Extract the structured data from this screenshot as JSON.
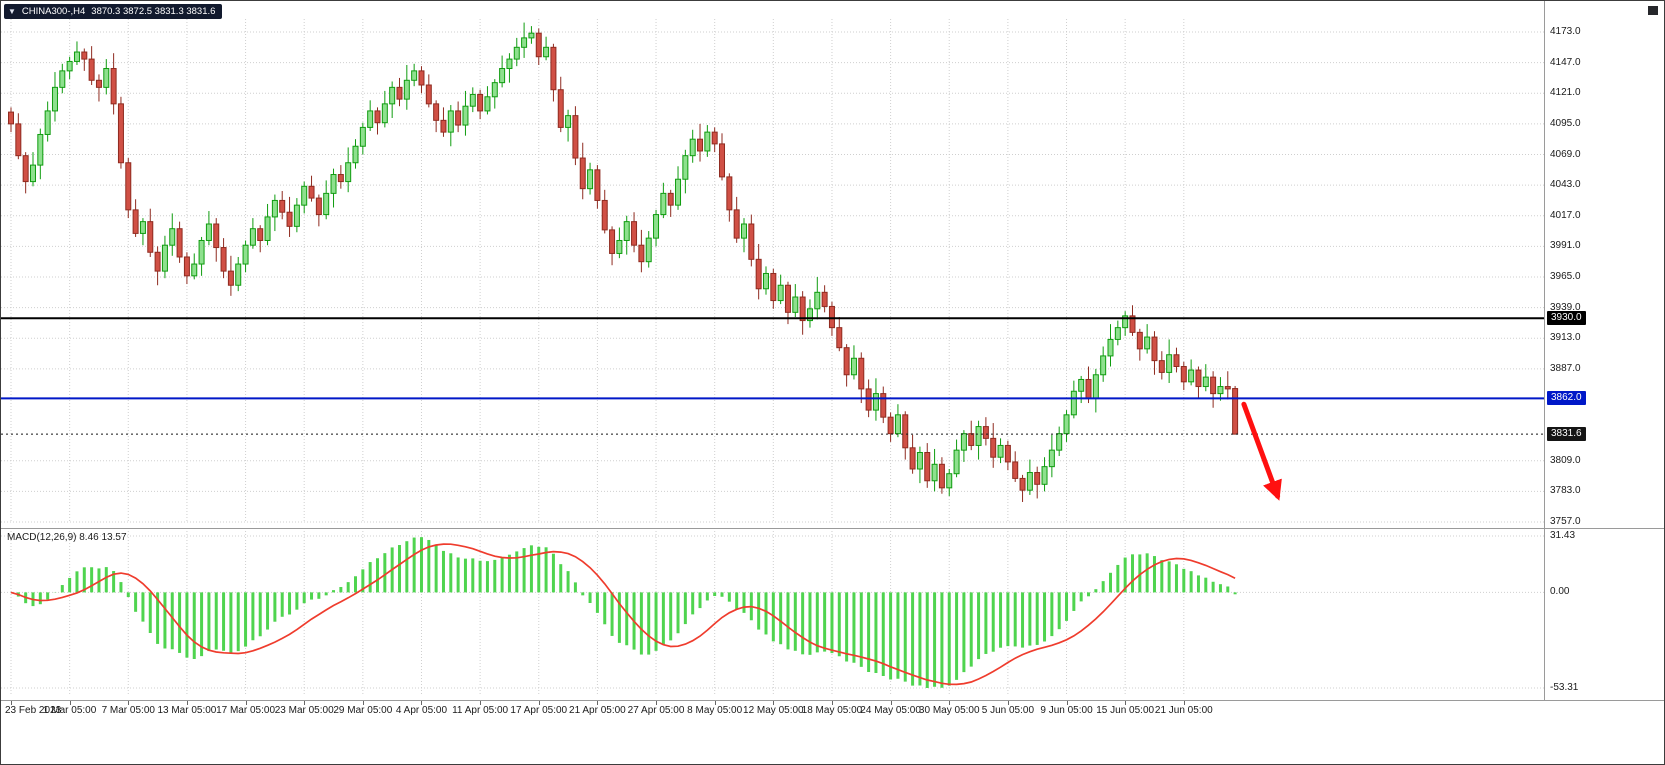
{
  "window": {
    "symbol_period": "CHINA300-,H4",
    "ohlc_text": "3870.3 3872.5 3831.3 3831.6",
    "dropdown_glyph": "▼"
  },
  "price_axis": {
    "tick_labels": [
      "4173.0",
      "4147.0",
      "4121.0",
      "4095.0",
      "4069.0",
      "4043.0",
      "4017.0",
      "3991.0",
      "3965.0",
      "3939.0",
      "3913.0",
      "3887.0",
      "3809.0",
      "3783.0",
      "3757.0"
    ]
  },
  "chart_data": [
    {
      "type": "candlestick",
      "title": "CHINA300-,H4",
      "symbol": "CHINA300-",
      "timeframe": "H4",
      "x_tick_labels": [
        "23 Feb 2023",
        "1 Mar 05:00",
        "7 Mar 05:00",
        "13 Mar 05:00",
        "17 Mar 05:00",
        "23 Mar 05:00",
        "29 Mar 05:00",
        "4 Apr 05:00",
        "11 Apr 05:00",
        "17 Apr 05:00",
        "21 Apr 05:00",
        "27 Apr 05:00",
        "8 May 05:00",
        "12 May 05:00",
        "18 May 05:00",
        "24 May 05:00",
        "30 May 05:00",
        "5 Jun 05:00",
        "9 Jun 05:00",
        "15 Jun 05:00",
        "21 Jun 05:00"
      ],
      "tick_every": 8,
      "ylim": [
        3745,
        4186
      ],
      "first_open": 4105,
      "closes": [
        4095,
        4068,
        4046,
        4060,
        4086,
        4106,
        4126,
        4140,
        4148,
        4156,
        4150,
        4132,
        4126,
        4142,
        4112,
        4062,
        4022,
        4002,
        4012,
        3986,
        3970,
        3992,
        4006,
        3982,
        3966,
        3976,
        3996,
        4010,
        3990,
        3970,
        3958,
        3976,
        3992,
        4006,
        3996,
        4016,
        4030,
        4020,
        4008,
        4026,
        4042,
        4032,
        4018,
        4036,
        4052,
        4046,
        4062,
        4076,
        4092,
        4106,
        4096,
        4112,
        4126,
        4116,
        4132,
        4140,
        4128,
        4112,
        4098,
        4088,
        4106,
        4094,
        4110,
        4120,
        4106,
        4118,
        4130,
        4142,
        4150,
        4160,
        4168,
        4172,
        4152,
        4160,
        4124,
        4092,
        4102,
        4066,
        4040,
        4056,
        4030,
        4005,
        3985,
        3996,
        4012,
        3992,
        3978,
        3998,
        4018,
        4036,
        4026,
        4048,
        4068,
        4082,
        4072,
        4088,
        4078,
        4050,
        4022,
        3998,
        4010,
        3980,
        3955,
        3968,
        3945,
        3958,
        3935,
        3948,
        3928,
        3938,
        3952,
        3940,
        3922,
        3905,
        3882,
        3896,
        3870,
        3852,
        3866,
        3846,
        3832,
        3848,
        3820,
        3802,
        3816,
        3792,
        3806,
        3786,
        3798,
        3818,
        3832,
        3822,
        3838,
        3828,
        3812,
        3822,
        3808,
        3794,
        3784,
        3799,
        3789,
        3804,
        3818,
        3832,
        3848,
        3868,
        3878,
        3862,
        3882,
        3898,
        3912,
        3922,
        3932,
        3918,
        3904,
        3914,
        3894,
        3884,
        3899,
        3889,
        3876,
        3886,
        3872,
        3880,
        3866,
        3872,
        3870,
        3831.6
      ],
      "last_candle_ohlc": [
        3870.3,
        3872.5,
        3831.3,
        3831.6
      ],
      "wick_high_cycle": [
        4,
        9,
        3,
        11,
        5,
        8,
        13,
        6
      ],
      "wick_low_cycle": [
        7,
        3,
        10,
        4,
        12,
        6,
        9,
        5
      ],
      "levels": [
        {
          "name": "resistance-line-3930",
          "label": "3930.0",
          "value": 3930.0,
          "color": "#000000",
          "style": "solid",
          "width": 2
        },
        {
          "name": "support-line-3862",
          "label": "3862.0",
          "value": 3862.0,
          "color": "#0018c8",
          "style": "solid",
          "width": 2
        },
        {
          "name": "bid-price-line",
          "label": "3831.6",
          "value": 3831.6,
          "color": "#151515",
          "style": "dotted",
          "width": 1
        }
      ],
      "arrow": {
        "name": "down-arrow-annotation",
        "color": "#ff1010",
        "start_index": 168.2,
        "start_price": 3857,
        "end_index": 172.8,
        "end_price": 3779
      }
    },
    {
      "type": "macd",
      "label": "MACD(12,26,9) 8.46 13.57",
      "indicator": "MACD",
      "params": "12,26,9",
      "macd_value": "8.46",
      "signal_value": "13.57",
      "axis_labels": [
        "31.43",
        "0.00",
        "-53.31"
      ],
      "axis_values": [
        31.43,
        0,
        -53.31
      ],
      "histogram_color": "#4fd44f",
      "signal_color": "#ef3c2d",
      "derivation": "histogram = EMA(close,12) - EMA(close,26); signal = SMA(histogram,9)"
    }
  ],
  "colors": {
    "background": "#ffffff",
    "grid": "#cfcfcf",
    "bull_fill": "#8ee08e",
    "bull_stroke": "#0f9c0f",
    "bear_fill": "#d05045",
    "bear_stroke": "#8f2b20",
    "level_black": "#000000",
    "level_blue": "#0018c8",
    "arrow_red": "#ff1010",
    "axis_text": "#1a1a1a",
    "panel_border": "#9a9a9a"
  }
}
